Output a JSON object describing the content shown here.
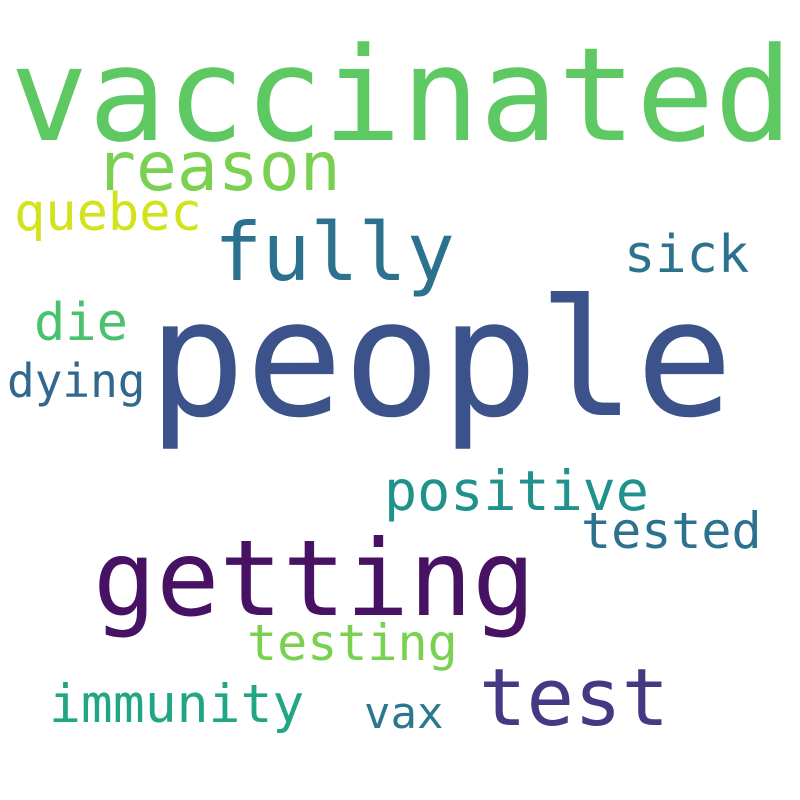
{
  "words": [
    {
      "text": "vaccinated",
      "color": "#5ec962"
    },
    {
      "text": "people",
      "color": "#3b528b"
    },
    {
      "text": "getting",
      "color": "#471164"
    },
    {
      "text": "reason",
      "color": "#7ad151"
    },
    {
      "text": "quebec",
      "color": "#d2e21b"
    },
    {
      "text": "fully",
      "color": "#2c728e"
    },
    {
      "text": "sick",
      "color": "#2c728e"
    },
    {
      "text": "die",
      "color": "#4ac16d"
    },
    {
      "text": "dying",
      "color": "#31688e"
    },
    {
      "text": "positive",
      "color": "#21918c"
    },
    {
      "text": "tested",
      "color": "#2c728e"
    },
    {
      "text": "testing",
      "color": "#7ad151"
    },
    {
      "text": "immunity",
      "color": "#21a685"
    },
    {
      "text": "test",
      "color": "#443983"
    },
    {
      "text": "vax",
      "color": "#2a788e"
    }
  ]
}
